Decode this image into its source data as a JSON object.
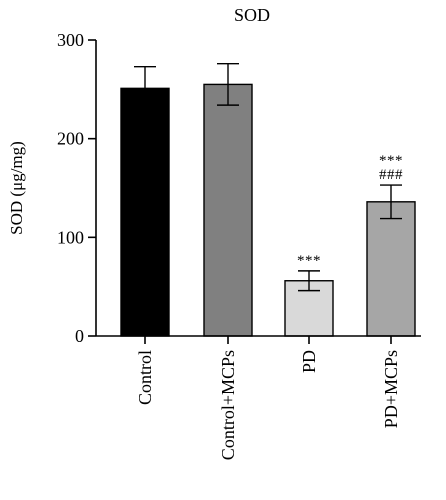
{
  "chart_data": {
    "type": "bar",
    "title": "SOD",
    "ylabel": "SOD (μg/mg)",
    "xlabel": "",
    "ylim": [
      0,
      300
    ],
    "yticks": [
      0,
      100,
      200,
      300
    ],
    "categories": [
      "Control",
      "Control+MCPs",
      "PD",
      "PD+MCPs"
    ],
    "values": [
      251,
      255,
      56,
      136
    ],
    "errors": [
      22,
      21,
      10,
      17
    ],
    "colors": [
      "#000000",
      "#808080",
      "#d9d9d9",
      "#a6a6a6"
    ],
    "annotations": [
      [],
      [],
      [
        "***"
      ],
      [
        "***",
        "###"
      ]
    ],
    "grid": false
  }
}
